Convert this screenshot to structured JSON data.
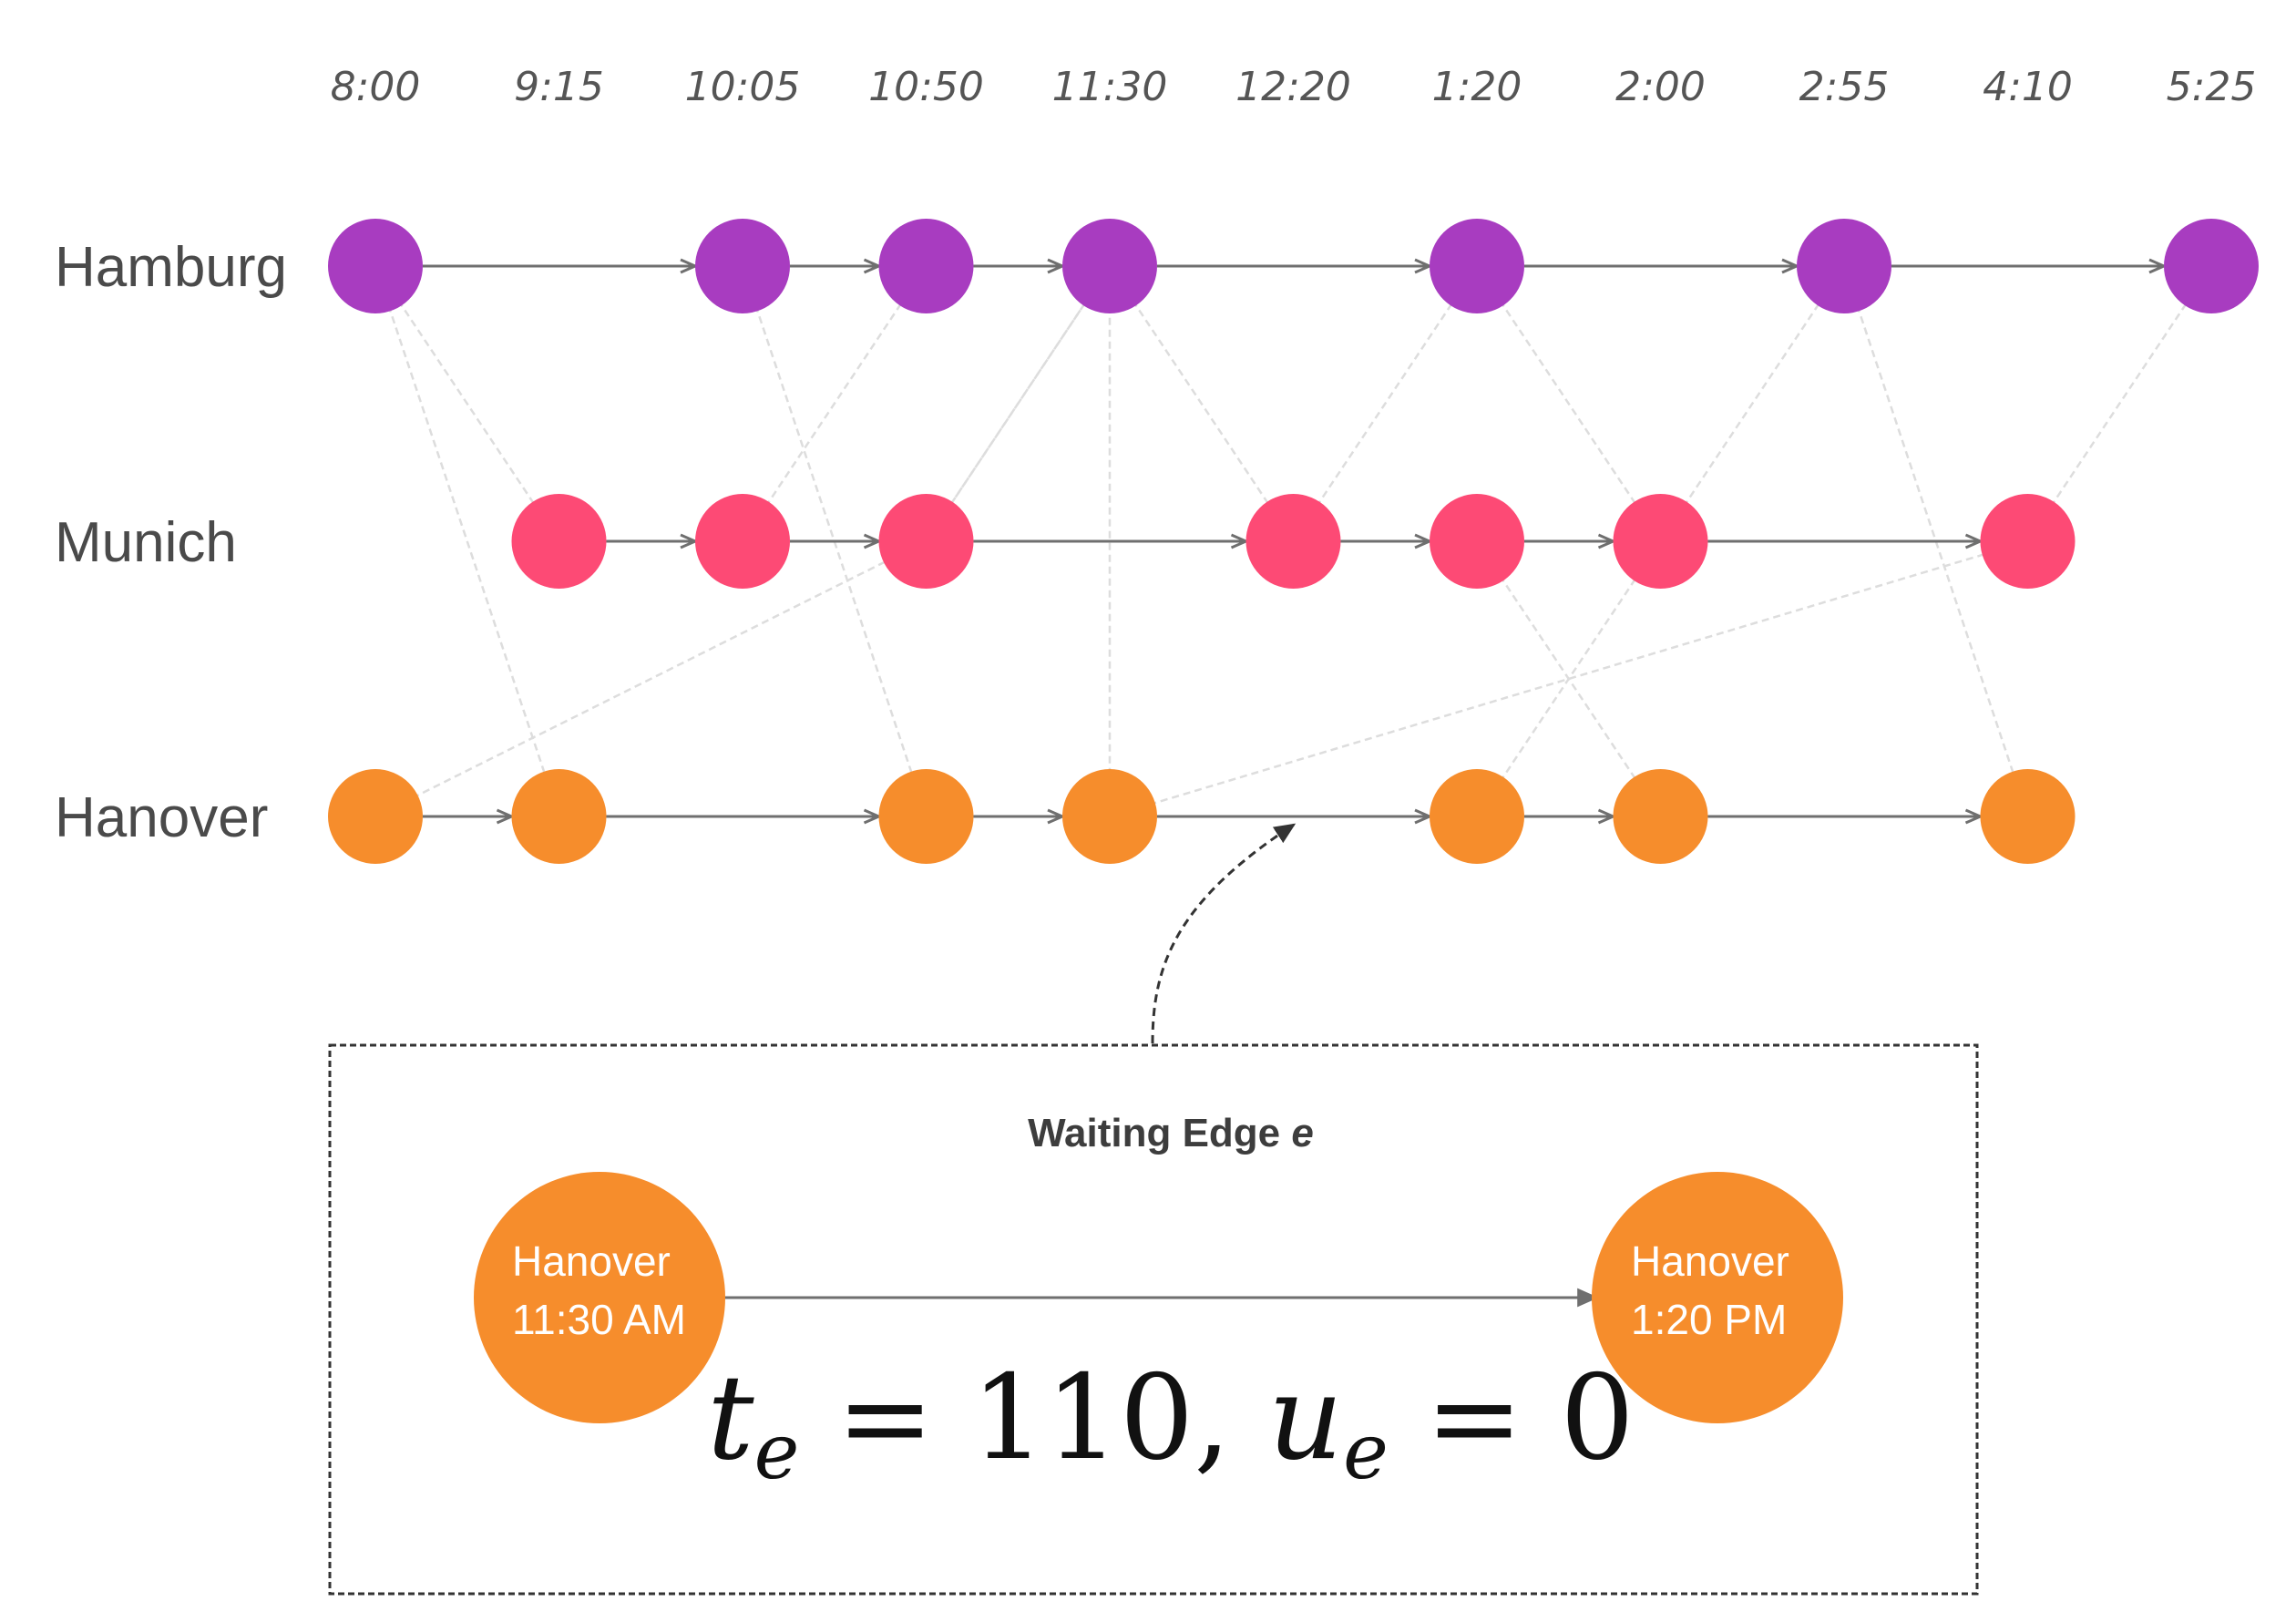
{
  "times": [
    "8:00",
    "9:15",
    "10:05",
    "10:50",
    "11:30",
    "12:20",
    "1:20",
    "2:00",
    "2:55",
    "4:10",
    "5:25"
  ],
  "cities": [
    {
      "name": "Hamburg",
      "color": "#a83cc0",
      "nodes": [
        0,
        2,
        3,
        4,
        6,
        8,
        10
      ]
    },
    {
      "name": "Munich",
      "color": "#fd4a75",
      "nodes": [
        1,
        2,
        3,
        5,
        6,
        7,
        9
      ]
    },
    {
      "name": "Hanover",
      "color": "#f68d2c",
      "nodes": [
        0,
        1,
        3,
        4,
        6,
        7,
        9
      ]
    }
  ],
  "transfer_edges": [
    [
      0,
      0,
      1,
      1
    ],
    [
      0,
      0,
      2,
      1
    ],
    [
      0,
      2,
      2,
      3
    ],
    [
      0,
      4,
      1,
      3
    ],
    [
      0,
      4,
      1,
      5
    ],
    [
      0,
      6,
      1,
      7
    ],
    [
      0,
      8,
      2,
      9
    ],
    [
      1,
      2,
      0,
      3
    ],
    [
      1,
      3,
      0,
      4
    ],
    [
      1,
      5,
      0,
      6
    ],
    [
      1,
      7,
      0,
      8
    ],
    [
      1,
      9,
      0,
      10
    ],
    [
      1,
      6,
      2,
      7
    ],
    [
      2,
      0,
      1,
      3
    ],
    [
      2,
      4,
      0,
      4
    ],
    [
      2,
      4,
      1,
      9
    ],
    [
      2,
      6,
      1,
      7
    ]
  ],
  "callout": {
    "title": "Waiting Edge",
    "title_var": "e",
    "from_node": {
      "city": "Hanover",
      "time": "11:30 AM"
    },
    "to_node": {
      "city": "Hanover",
      "time": "1:20 PM"
    },
    "formula": {
      "t_symbol": "t",
      "subscript": "e",
      "t_value": "110",
      "u_symbol": "u",
      "u_value": "0"
    }
  },
  "colors": {
    "edge": "#6f6f6f",
    "transfer_edge": "#dddddd",
    "callout_border": "#333333"
  }
}
